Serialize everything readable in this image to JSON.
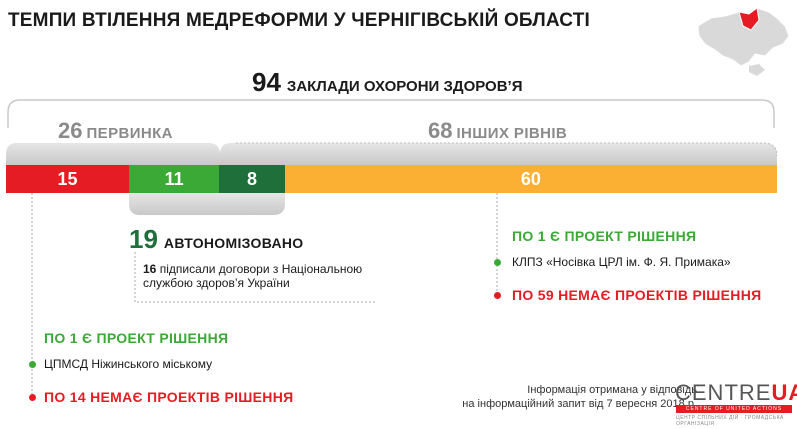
{
  "title": "ТЕМПИ ВТІЛЕННЯ МЕДРЕФОРМИ У ЧЕРНІГІВСЬКІЙ ОБЛАСТІ",
  "total": {
    "value": "94",
    "label": "ЗАКЛАДИ ОХОРОНИ ЗДОРОВ’Я"
  },
  "groups": {
    "primary": {
      "value": "26",
      "label": "ПЕРВИНКА"
    },
    "other": {
      "value": "68",
      "label": "ІНШИХ РІВНІВ"
    }
  },
  "chart_data": {
    "type": "bar",
    "orientation": "horizontal-stacked",
    "total": 94,
    "segments": [
      {
        "value": 15,
        "label": "15",
        "color": "#e51c23"
      },
      {
        "value": 11,
        "label": "11",
        "color": "#3aa935"
      },
      {
        "value": 8,
        "label": "8",
        "color": "#1e6f3a"
      },
      {
        "value": 60,
        "label": "60",
        "color": "#fbb034"
      }
    ]
  },
  "autonomized": {
    "value": "19",
    "label": "АВТОНОМІЗОВАНО",
    "note_num": "16",
    "note_line1": "підписали договори з Національною",
    "note_line2": "службою здоров’я України"
  },
  "right_block": {
    "project": "ПО 1 Є ПРОЕКТ РІШЕННЯ",
    "item": "КЛПЗ «Носівка ЦРЛ ім. Ф. Я. Примака»",
    "no_project": "ПО 59 НЕМАЄ ПРОЕКТІВ РІШЕННЯ"
  },
  "left_block": {
    "project": "ПО 1 Є ПРОЕКТ РІШЕННЯ",
    "item": "ЦПМСД Ніжинського міському",
    "no_project": "ПО 14 НЕМАЄ ПРОЕКТІВ РІШЕННЯ"
  },
  "source": {
    "line1": "Інформація отримана у відповідь",
    "line2": "на інформаційний запит від 7 вересня 2018 р."
  },
  "logo": {
    "text_a": "CENTRE",
    "text_b": "UA",
    "sub": "CENTRE OF UNITED ACTIONS",
    "tag": "ЦЕНТР СПІЛЬНИХ ДІЙ · ГРОМАДСЬКА ОРГАНІЗАЦІЯ"
  },
  "colors": {
    "red": "#e51c23",
    "green": "#3aa935",
    "dark_green": "#1e6f3a",
    "orange": "#fbb034",
    "grey": "#8a8a8a"
  }
}
